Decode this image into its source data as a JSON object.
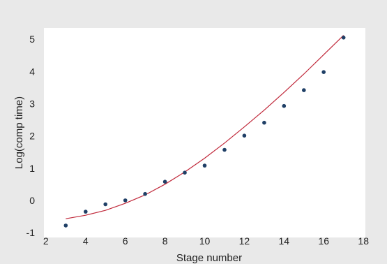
{
  "chart_data": {
    "type": "scatter",
    "title": "",
    "xlabel": "Stage number",
    "ylabel": "Log(comp time)",
    "xlim": [
      1.9,
      18.1
    ],
    "ylim": [
      -1.15,
      5.35
    ],
    "xticks": [
      2,
      4,
      6,
      8,
      10,
      12,
      14,
      16,
      18
    ],
    "yticks": [
      -1,
      0,
      1,
      2,
      3,
      4,
      5
    ],
    "grid": false,
    "legend": "none",
    "series": [
      {
        "type": "scatter",
        "color": "#1f3f66",
        "x": [
          3,
          4,
          5,
          6,
          7,
          8,
          9,
          10,
          11,
          12,
          13,
          14,
          15,
          16,
          17
        ],
        "y": [
          -0.78,
          -0.35,
          -0.12,
          0.0,
          0.2,
          0.58,
          0.86,
          1.08,
          1.57,
          2.01,
          2.41,
          2.93,
          3.42,
          3.98,
          5.05
        ]
      },
      {
        "type": "line",
        "color": "#c0283a",
        "x": [
          3,
          4,
          5,
          6,
          7,
          8,
          9,
          10,
          11,
          12,
          13,
          14,
          15,
          16,
          17
        ],
        "y": [
          -0.57,
          -0.46,
          -0.31,
          -0.09,
          0.17,
          0.5,
          0.88,
          1.31,
          1.78,
          2.28,
          2.8,
          3.35,
          3.92,
          4.52,
          5.12
        ]
      }
    ]
  }
}
